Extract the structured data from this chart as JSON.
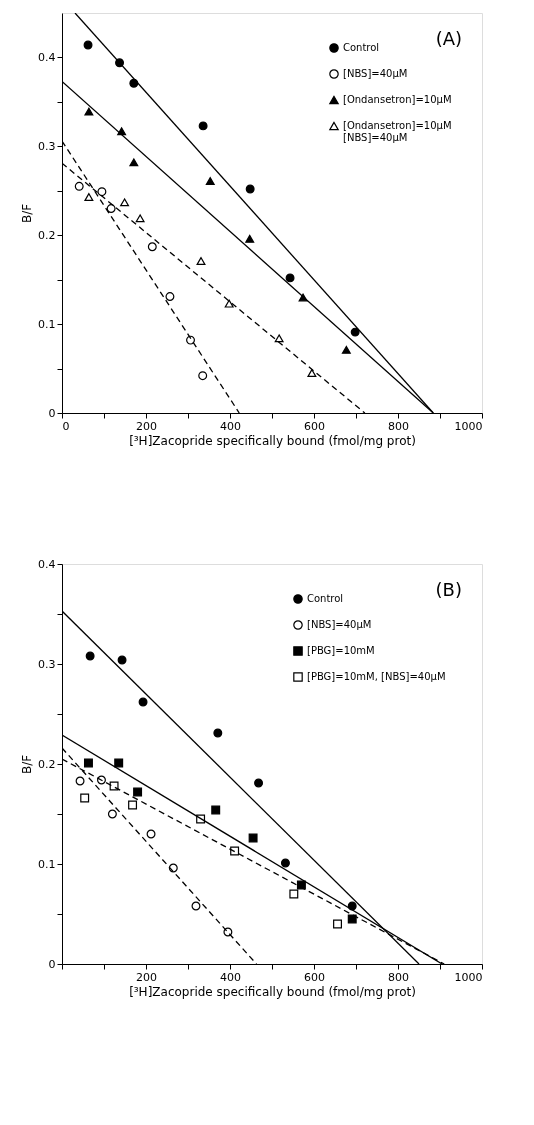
{
  "chart_data": [
    {
      "type": "scatter",
      "xlabel": "[³H]Zacopride specifically bound (fmol/mg prot)",
      "ylabel": "B/F",
      "annotations": [
        "(A)"
      ],
      "xlim": [
        0,
        1000
      ],
      "ylim": [
        0,
        0.45
      ],
      "xticks": [
        0,
        {
          "value": 100,
          "label": null
        },
        200,
        {
          "value": 300,
          "label": null
        },
        400,
        {
          "value": 500,
          "label": null
        },
        600,
        {
          "value": 700,
          "label": null
        },
        800,
        {
          "value": 900,
          "label": null
        },
        1000
      ],
      "yticks": [
        0,
        {
          "value": 0.05,
          "label": null
        },
        0.1,
        {
          "value": 0.15,
          "label": null
        },
        0.2,
        {
          "value": 0.25,
          "label": null
        },
        0.3,
        {
          "value": 0.35,
          "label": null
        },
        0.4
      ],
      "grid": false,
      "legend": "top right",
      "series": [
        {
          "name": "Control",
          "color": "#000000",
          "marker": "circle",
          "x": [
            62,
            137,
            171,
            336,
            448,
            543,
            698
          ],
          "values": [
            0.414,
            0.394,
            0.371,
            0.323,
            0.252,
            0.152,
            0.091
          ]
        },
        {
          "name": "[NBS]=40μM",
          "color": "#ffffff",
          "marker": "circle",
          "x": [
            41,
            95,
            117,
            215,
            257,
            306,
            335
          ],
          "values": [
            0.255,
            0.249,
            0.23,
            0.187,
            0.131,
            0.082,
            0.042
          ]
        },
        {
          "name": "[Ondansetron]=10μM",
          "color": "#000000",
          "marker": "triangle",
          "x": [
            64,
            142,
            171,
            353,
            447,
            574,
            677
          ],
          "values": [
            0.339,
            0.317,
            0.282,
            0.261,
            0.196,
            0.13,
            0.071
          ]
        },
        {
          "name": "[Ondansetron]=10μM\n[NBS]=40μM",
          "color": "#ffffff",
          "marker": "triangle",
          "x": [
            64,
            149,
            186,
            331,
            398,
            517,
            595
          ],
          "values": [
            0.243,
            0.237,
            0.219,
            0.171,
            0.123,
            0.084,
            0.045
          ]
        },
        {
          "type": "line",
          "color": "#000000",
          "line_style": "solid",
          "x": [
            31,
            884
          ],
          "values": [
            0.45,
            0
          ]
        },
        {
          "type": "line",
          "color": "#000000",
          "line_style": "dashed",
          "x": [
            0,
            422
          ],
          "values": [
            0.306,
            0
          ]
        },
        {
          "type": "line",
          "color": "#000000",
          "line_style": "solid",
          "x": [
            0,
            884
          ],
          "values": [
            0.373,
            0
          ]
        },
        {
          "type": "line",
          "color": "#000000",
          "line_style": "dashed",
          "x": [
            0,
            721
          ],
          "values": [
            0.281,
            0
          ]
        }
      ]
    },
    {
      "type": "scatter",
      "xlabel": "[³H]Zacopride specifically bound (fmol/mg prot)",
      "ylabel": "B/F",
      "annotations": [
        "(B)"
      ],
      "xlim": [
        0,
        1000
      ],
      "ylim": [
        0,
        0.4
      ],
      "xticks": [
        {
          "value": 0,
          "label": null
        },
        {
          "value": 100,
          "label": null
        },
        200,
        {
          "value": 300,
          "label": null
        },
        400,
        {
          "value": 500,
          "label": null
        },
        600,
        {
          "value": 700,
          "label": null
        },
        800,
        {
          "value": 900,
          "label": null
        },
        1000
      ],
      "yticks": [
        0,
        {
          "value": 0.05,
          "label": null
        },
        0.1,
        {
          "value": 0.15,
          "label": null
        },
        0.2,
        {
          "value": 0.25,
          "label": null
        },
        0.3,
        {
          "value": 0.35,
          "label": null
        },
        0.4
      ],
      "grid": false,
      "legend": "top right",
      "series": [
        {
          "name": "Control",
          "color": "#000000",
          "marker": "circle",
          "x": [
            67,
            143,
            193,
            371,
            468,
            532,
            691
          ],
          "values": [
            0.308,
            0.304,
            0.262,
            0.231,
            0.181,
            0.101,
            0.058
          ]
        },
        {
          "name": "[NBS]=40μM",
          "color": "#ffffff",
          "marker": "circle",
          "x": [
            43,
            94,
            120,
            212,
            265,
            319,
            395
          ],
          "values": [
            0.183,
            0.184,
            0.15,
            0.13,
            0.096,
            0.058,
            0.032
          ]
        },
        {
          "name": "[PBG]=10mM",
          "color": "#000000",
          "marker": "square",
          "x": [
            63,
            135,
            180,
            366,
            455,
            570,
            691
          ],
          "values": [
            0.201,
            0.201,
            0.172,
            0.154,
            0.126,
            0.079,
            0.045
          ]
        },
        {
          "name": "[PBG]=10mM,   [NBS]=40μM",
          "color": "#ffffff",
          "marker": "square",
          "x": [
            54,
            124,
            168,
            330,
            411,
            552,
            656
          ],
          "values": [
            0.166,
            0.178,
            0.159,
            0.145,
            0.113,
            0.07,
            0.04
          ]
        },
        {
          "type": "line",
          "color": "#000000",
          "line_style": "solid",
          "x": [
            0,
            850
          ],
          "values": [
            0.353,
            0
          ]
        },
        {
          "type": "line",
          "color": "#000000",
          "line_style": "dashed",
          "x": [
            0,
            463
          ],
          "values": [
            0.216,
            0
          ]
        },
        {
          "type": "line",
          "color": "#000000",
          "line_style": "solid",
          "x": [
            0,
            905
          ],
          "values": [
            0.229,
            0
          ]
        },
        {
          "type": "line",
          "color": "#000000",
          "line_style": "dashed",
          "x": [
            0,
            910
          ],
          "values": [
            0.205,
            0
          ]
        }
      ]
    }
  ]
}
